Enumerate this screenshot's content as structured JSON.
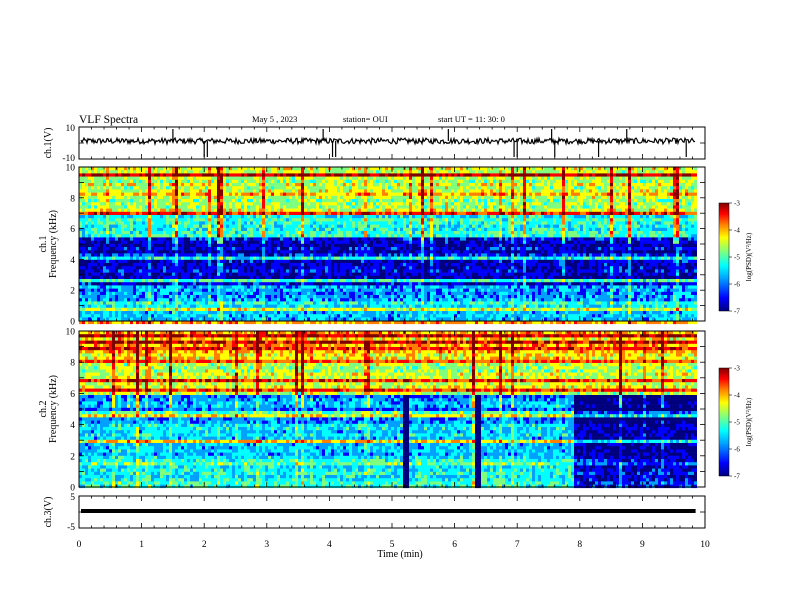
{
  "header": {
    "title": "VLF Spectra",
    "date": "May 5  , 2023",
    "station": "station= OUI",
    "start_ut": "start  UT =   11: 30: 0"
  },
  "colors": {
    "spectrogram_scale": [
      "#00007f",
      "#0000ff",
      "#00a0ff",
      "#00ffff",
      "#7fff7f",
      "#ffff00",
      "#ff8000",
      "#ff0000",
      "#7f0000"
    ]
  },
  "chart_data": [
    {
      "type": "line",
      "panel": "ch1-waveform",
      "ylabel": "ch.1(V)",
      "ylim": [
        -10,
        10
      ],
      "y_ticks": [
        "10",
        "-10"
      ],
      "xlim": [
        0,
        10
      ],
      "description_values": {
        "baseline_v": 0,
        "noise_band_v": [
          -2,
          2
        ],
        "spike_times_min": [
          1.5,
          2.0,
          2.05,
          3.9,
          4.05,
          4.1,
          5.9,
          6.95,
          7.0,
          7.55,
          7.6,
          8.3,
          8.75,
          9.7
        ]
      }
    },
    {
      "type": "heatmap",
      "panel": "ch1-spectrogram",
      "ylabel": "ch.1\nFrequency (kHz)",
      "ylim": [
        0,
        10
      ],
      "y_ticks": [
        "0",
        "2",
        "4",
        "6",
        "8",
        "10"
      ],
      "xlim": [
        0,
        9.85
      ],
      "colorbar": {
        "label": "log(PSD)(V²/Hz)",
        "range": [
          -7,
          -3
        ],
        "ticks": [
          "-3",
          "-4",
          "-5",
          "-6",
          "-7"
        ]
      },
      "bands": [
        {
          "f_khz": [
            0,
            0.3
          ],
          "log_psd": -4.2
        },
        {
          "f_khz": [
            0.3,
            1.5
          ],
          "log_psd": -5.6
        },
        {
          "f_khz": [
            1.5,
            2.5
          ],
          "log_psd": -6.0
        },
        {
          "f_khz": [
            2.5,
            5.8
          ],
          "log_psd": -6.6
        },
        {
          "f_khz": [
            5.8,
            7.0
          ],
          "log_psd": -5.4
        },
        {
          "f_khz": [
            7.0,
            10
          ],
          "log_psd": -4.8
        }
      ]
    },
    {
      "type": "heatmap",
      "panel": "ch2-spectrogram",
      "ylabel": "ch.2\nFrequency (kHz)",
      "ylim": [
        0,
        10
      ],
      "y_ticks": [
        "0",
        "2",
        "4",
        "6",
        "8",
        "10"
      ],
      "xlim": [
        0,
        9.85
      ],
      "colorbar": {
        "label": "log(PSD)(V²/Hz)",
        "range": [
          -7,
          -3
        ],
        "ticks": [
          "-3",
          "-4",
          "-5",
          "-6",
          "-7"
        ]
      },
      "bands": [
        {
          "f_khz": [
            0,
            1.5
          ],
          "log_psd": -5.4
        },
        {
          "f_khz": [
            1.5,
            4.0
          ],
          "log_psd": -5.7
        },
        {
          "f_khz": [
            4.0,
            6.0
          ],
          "log_psd": -5.9
        },
        {
          "f_khz": [
            6.0,
            8.0
          ],
          "log_psd": -4.8
        },
        {
          "f_khz": [
            8.0,
            10
          ],
          "log_psd": -4.4
        }
      ],
      "dark_events_min": [
        [
          5.15,
          5.25
        ],
        [
          6.3,
          6.42
        ]
      ],
      "quiet_after_min": 7.9
    },
    {
      "type": "line",
      "panel": "ch3-waveform",
      "ylabel": "ch.3(V)",
      "ylim": [
        -5,
        5
      ],
      "y_ticks": [
        "5",
        "-5"
      ],
      "xlim": [
        0,
        10
      ],
      "xlabel": "Time (min)",
      "x_ticks": [
        "0",
        "1",
        "2",
        "3",
        "4",
        "5",
        "6",
        "7",
        "8",
        "9",
        "10"
      ],
      "description_values": {
        "level_v": -0.3,
        "end_min": 9.85
      }
    }
  ]
}
